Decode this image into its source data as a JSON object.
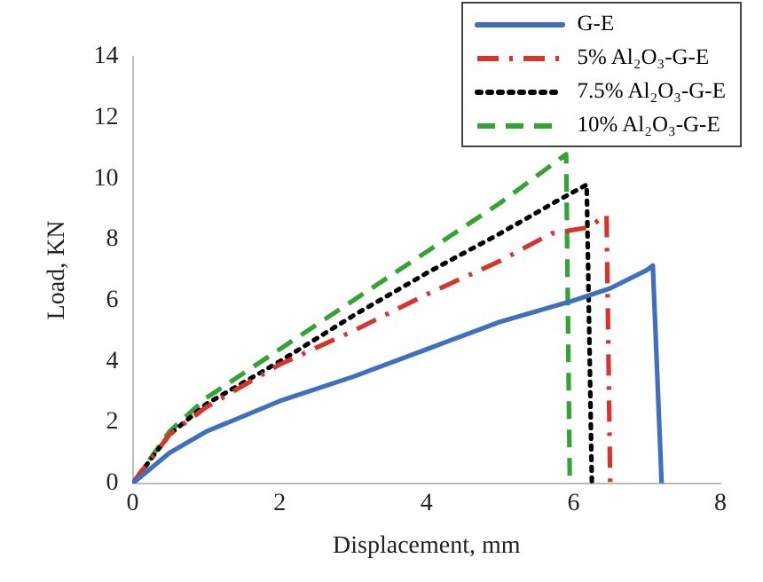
{
  "chart_data": {
    "type": "line",
    "xlabel": "Displacement, mm",
    "ylabel": "Load, KN",
    "xlim": [
      0,
      8
    ],
    "xticks": [
      0,
      2,
      4,
      6,
      8
    ],
    "ylim": [
      0,
      14
    ],
    "yticks": [
      0,
      2,
      4,
      6,
      8,
      10,
      12,
      14
    ],
    "grid": false,
    "legend": "top right",
    "marker": "none",
    "series": [
      {
        "name": "G-E",
        "color": "#3f6fbf",
        "line_style": "solid",
        "x": [
          0,
          0.5,
          1,
          2,
          3,
          4,
          5,
          6,
          6.5,
          7,
          7.08,
          7.2
        ],
        "values": [
          0,
          1,
          1.7,
          2.7,
          3.5,
          4.4,
          5.3,
          6,
          6.4,
          7,
          7.15,
          0
        ]
      },
      {
        "name": "5% Al₂O₃-G-E",
        "color": "#d7352c",
        "line_style": "dashdot",
        "x": [
          0,
          0.5,
          1,
          2,
          3,
          4,
          5,
          5.7,
          6.2,
          6.45,
          6.5
        ],
        "values": [
          0,
          1.6,
          2.5,
          3.9,
          5,
          6.2,
          7.3,
          8.2,
          8.4,
          8.8,
          0
        ]
      },
      {
        "name": "7.5% Al₂O₃-G-E",
        "color": "#000000",
        "line_style": "dotted",
        "x": [
          0,
          0.5,
          1,
          2,
          3,
          4,
          5,
          5.8,
          6.18,
          6.25
        ],
        "values": [
          0,
          1.6,
          2.6,
          4,
          5.5,
          6.9,
          8.2,
          9.3,
          9.8,
          0
        ]
      },
      {
        "name": "10% Al₂O₃-G-E",
        "color": "#35a235",
        "line_style": "dashed",
        "x": [
          0,
          0.5,
          1,
          2,
          3,
          4,
          5,
          5.9,
          5.95
        ],
        "values": [
          0,
          1.7,
          2.8,
          4.4,
          6,
          7.6,
          9.2,
          10.8,
          0
        ]
      }
    ]
  }
}
